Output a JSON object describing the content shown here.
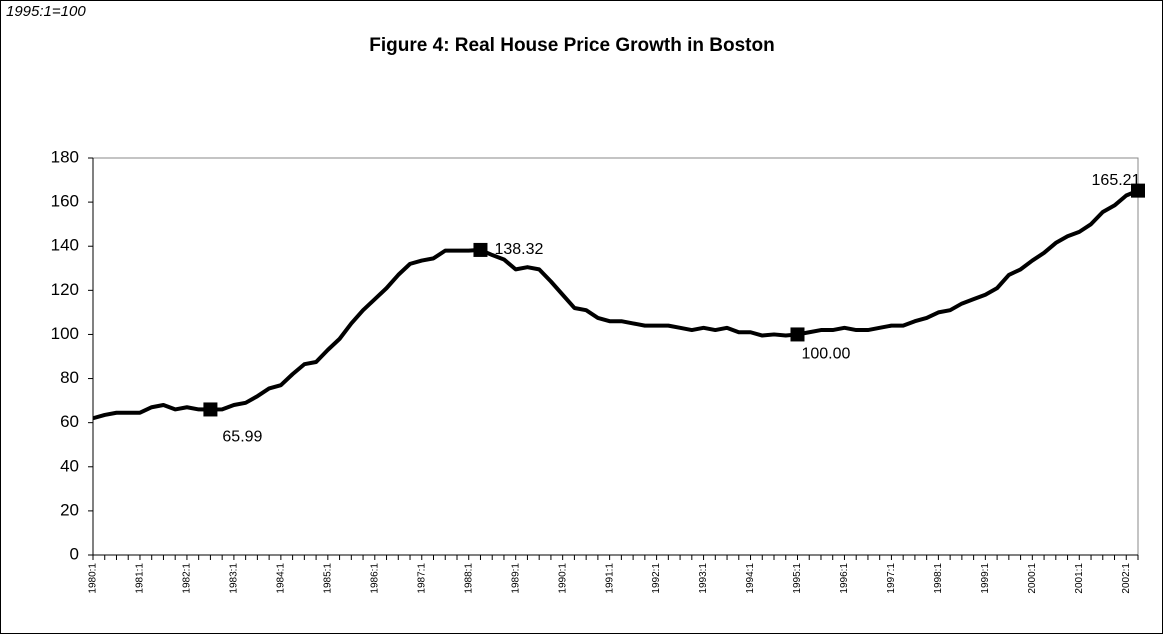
{
  "chart_data": {
    "type": "line",
    "title": "Figure 4: Real House Price Growth in Boston",
    "note": "1995:1=100",
    "categories": [
      "1980:1",
      null,
      null,
      null,
      "1981:1",
      null,
      null,
      null,
      "1982:1",
      null,
      null,
      null,
      "1983:1",
      null,
      null,
      null,
      "1984:1",
      null,
      null,
      null,
      "1985:1",
      null,
      null,
      null,
      "1986:1",
      null,
      null,
      null,
      "1987:1",
      null,
      null,
      null,
      "1988:1",
      null,
      null,
      null,
      "1989:1",
      null,
      null,
      null,
      "1990:1",
      null,
      null,
      null,
      "1991:1",
      null,
      null,
      null,
      "1992:1",
      null,
      null,
      null,
      "1993:1",
      null,
      null,
      null,
      "1994:1",
      null,
      null,
      null,
      "1995:1",
      null,
      null,
      null,
      "1996:1",
      null,
      null,
      null,
      "1997:1",
      null,
      null,
      null,
      "1998:1",
      null,
      null,
      null,
      "1999:1",
      null,
      null,
      null,
      "2000:1",
      null,
      null,
      null,
      "2001:1",
      null,
      null,
      null,
      "2002:1",
      null
    ],
    "values": [
      62,
      63.5,
      64.5,
      64.5,
      64.5,
      67,
      68,
      66,
      67,
      66,
      65.99,
      66,
      68,
      69,
      72,
      75.5,
      77,
      82,
      86.5,
      87.5,
      93,
      98,
      105,
      111,
      116,
      121,
      127,
      132,
      133.5,
      134.5,
      138,
      138,
      138,
      138.32,
      136,
      134,
      129.5,
      130.5,
      129.5,
      124,
      118,
      112,
      111,
      107.5,
      106,
      106,
      105,
      104,
      104,
      104,
      103,
      102,
      103,
      102,
      103,
      101,
      101,
      99.5,
      100,
      99.5,
      100,
      101,
      102,
      102,
      103,
      102,
      102,
      103,
      104,
      104,
      106,
      107.5,
      110,
      111,
      114,
      116,
      118,
      121,
      127,
      129.5,
      133.5,
      137,
      141.5,
      144.5,
      146.5,
      150,
      155.5,
      158.5,
      163,
      165.21
    ],
    "value_labels": [
      null,
      null,
      null,
      null,
      null,
      null,
      null,
      null,
      null,
      null,
      "65.99",
      null,
      null,
      null,
      null,
      null,
      null,
      null,
      null,
      null,
      null,
      null,
      null,
      null,
      null,
      null,
      null,
      null,
      null,
      null,
      null,
      null,
      null,
      "138.32",
      null,
      null,
      null,
      null,
      null,
      null,
      null,
      null,
      null,
      null,
      null,
      null,
      null,
      null,
      null,
      null,
      null,
      null,
      null,
      null,
      null,
      null,
      null,
      null,
      null,
      null,
      "100.00",
      null,
      null,
      null,
      null,
      null,
      null,
      null,
      null,
      null,
      null,
      null,
      null,
      null,
      null,
      null,
      null,
      null,
      null,
      null,
      null,
      null,
      null,
      null,
      null,
      null,
      null,
      null,
      null,
      "165.21"
    ],
    "color": "#000000",
    "ylim": [
      0,
      180
    ],
    "yticks": [
      0,
      20,
      40,
      60,
      80,
      100,
      120,
      140,
      160,
      180
    ],
    "grid": false
  }
}
